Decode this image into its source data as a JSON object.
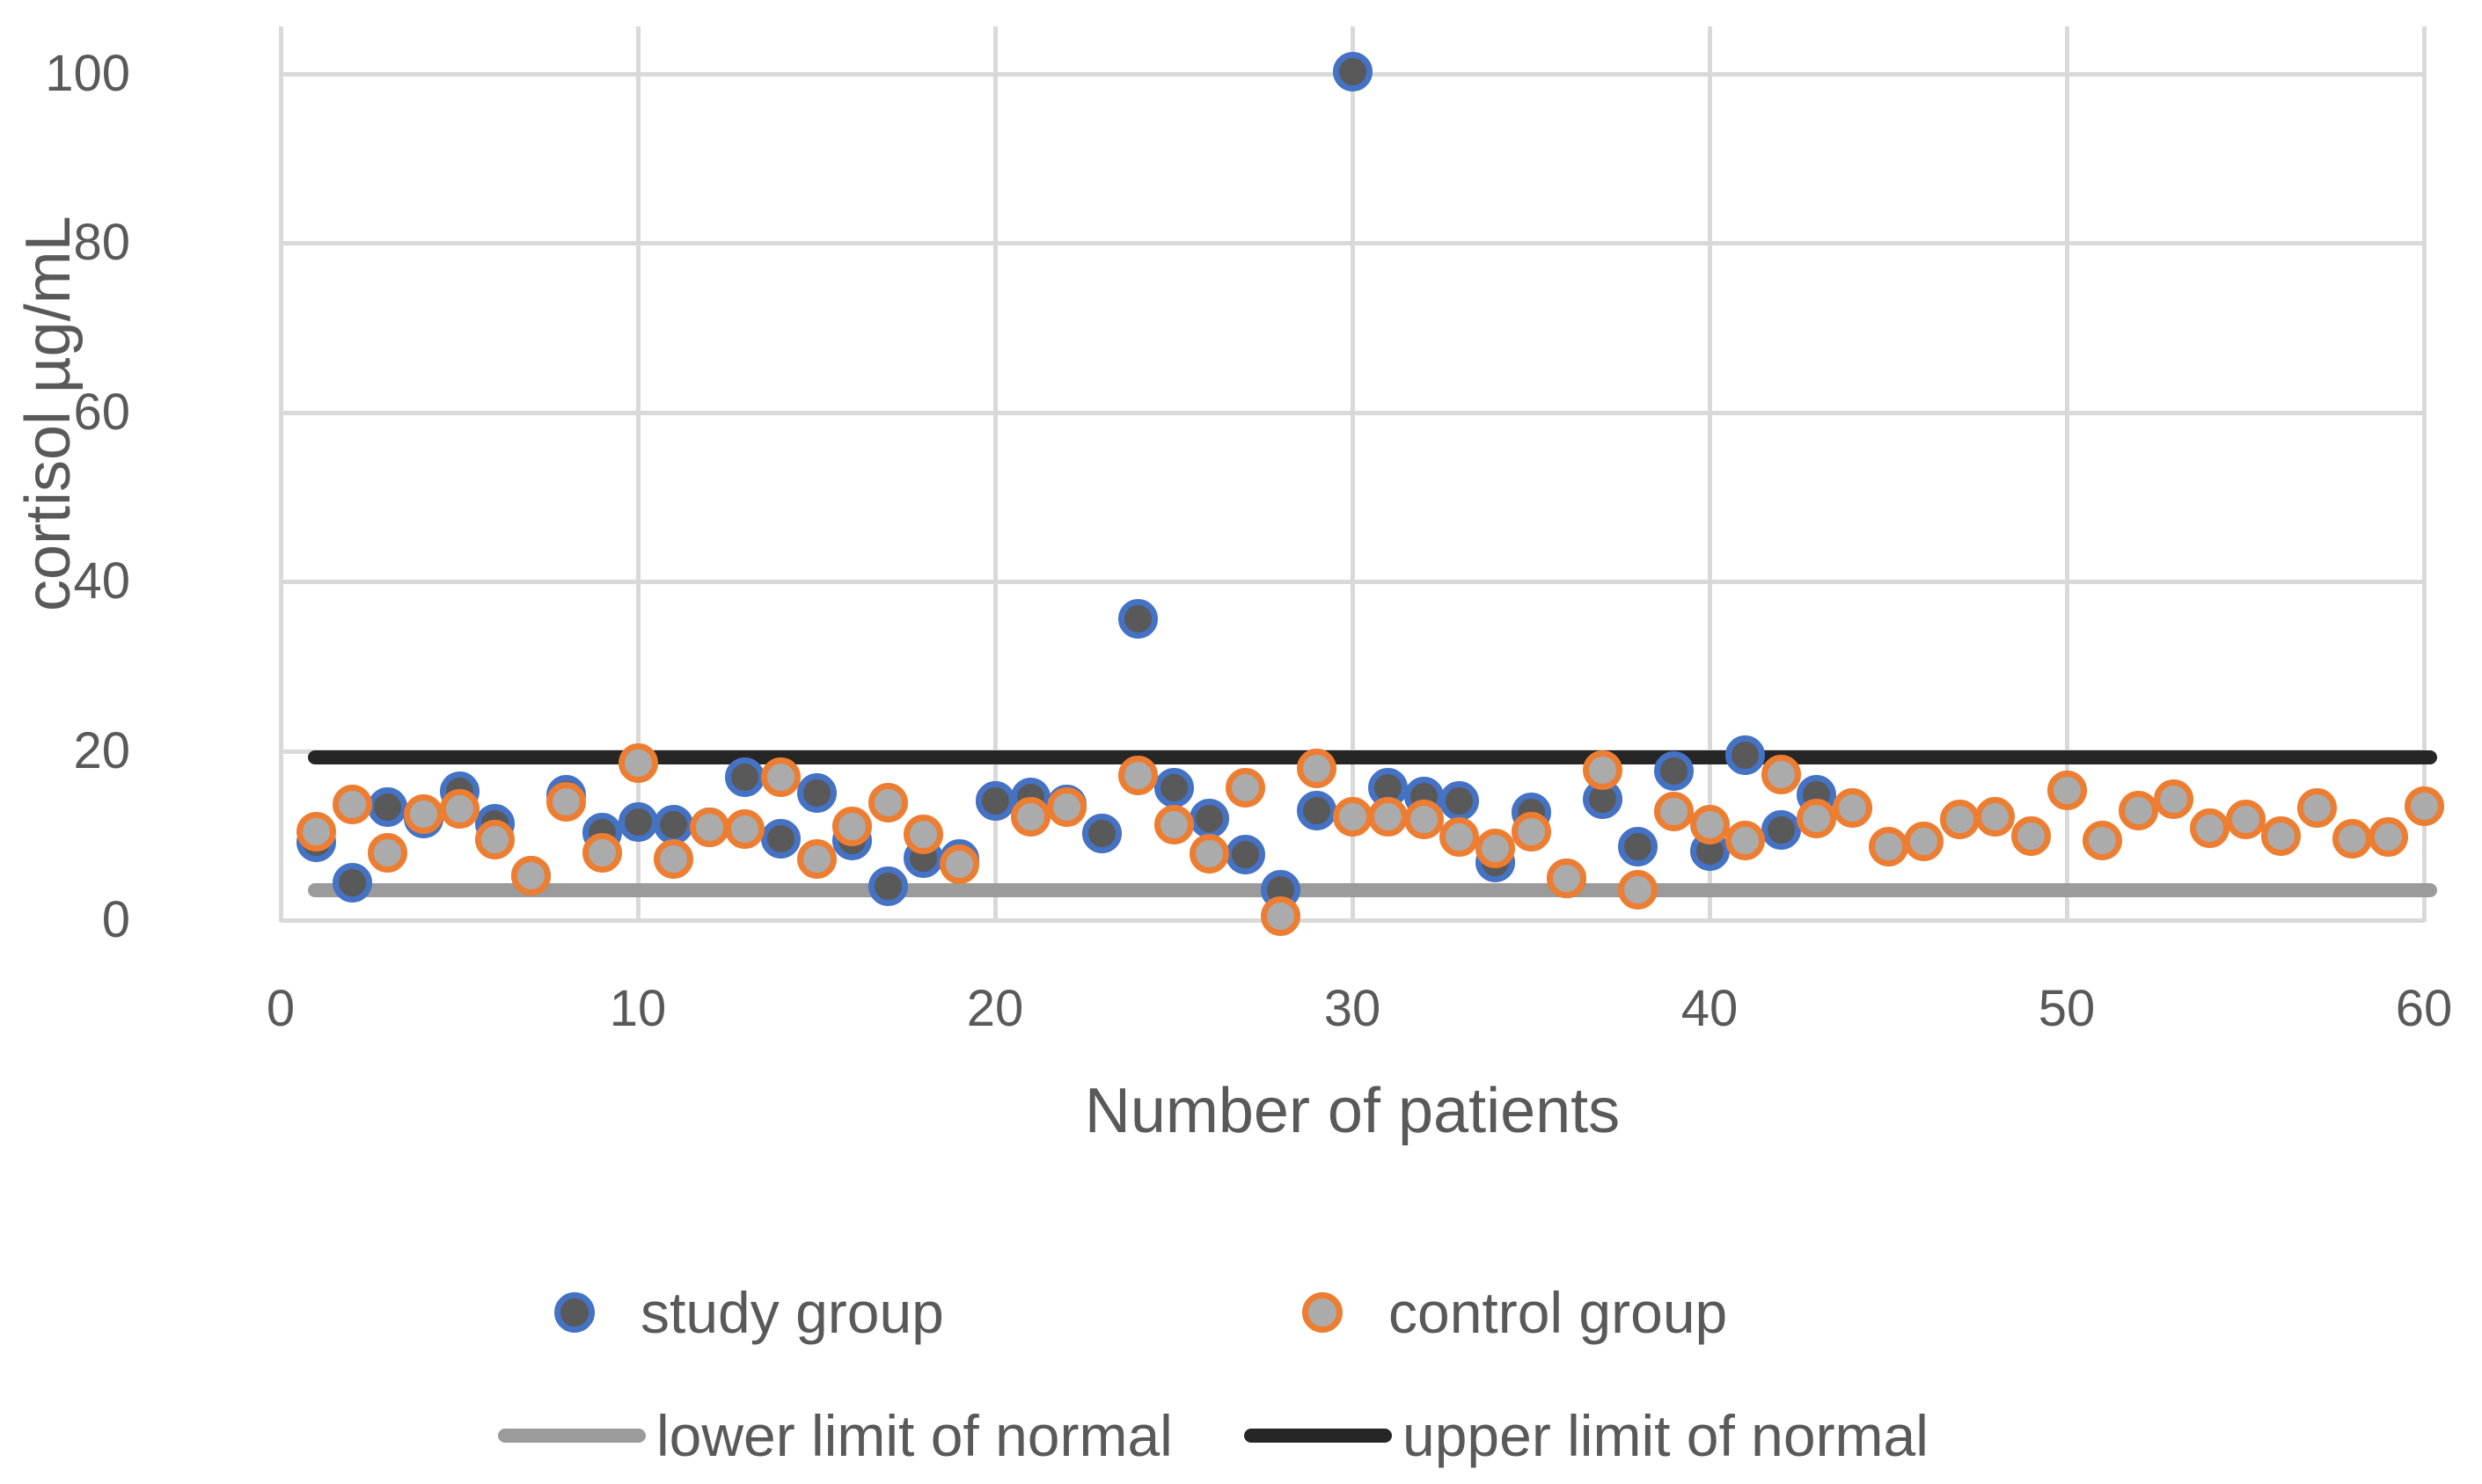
{
  "chart_data": {
    "type": "scatter",
    "title": "",
    "xlabel": "Number of patients",
    "ylabel": "cortisol µg/mL",
    "xlim": [
      0,
      61
    ],
    "ylim": [
      0,
      105
    ],
    "x_ticks": [
      0,
      10,
      20,
      30,
      40,
      50,
      60
    ],
    "y_ticks": [
      0,
      20,
      40,
      60,
      80,
      100
    ],
    "grid": true,
    "legend_position": "bottom",
    "colors": {
      "grid": "#D9D9D9",
      "axis_text": "#595959",
      "study_ring": "#4472C4",
      "study_fill": "#595959",
      "control_ring": "#ED7D31",
      "control_fill": "#ABABAB",
      "lower_limit": "#9B9B9B",
      "upper_limit": "#262626"
    },
    "series": [
      {
        "name": "study group",
        "marker": "circle",
        "ring": "#4472C4",
        "fill": "#595959",
        "points": [
          [
            1,
            9.2
          ],
          [
            2,
            4.4
          ],
          [
            3,
            13.4
          ],
          [
            4,
            12.0
          ],
          [
            5,
            15.2
          ],
          [
            6,
            11.4
          ],
          [
            7,
            5.2
          ],
          [
            8,
            14.8
          ],
          [
            9,
            10.3
          ],
          [
            10,
            11.6
          ],
          [
            11,
            11.3
          ],
          [
            12,
            11.0
          ],
          [
            13,
            16.9
          ],
          [
            14,
            9.6
          ],
          [
            15,
            15.0
          ],
          [
            16,
            9.4
          ],
          [
            17,
            4.0
          ],
          [
            18,
            7.3
          ],
          [
            19,
            7.2
          ],
          [
            20,
            14.1
          ],
          [
            21,
            14.5
          ],
          [
            22,
            13.7
          ],
          [
            23,
            10.2
          ],
          [
            24,
            35.6
          ],
          [
            25,
            15.6
          ],
          [
            26,
            12.0
          ],
          [
            27,
            7.7
          ],
          [
            28,
            3.6
          ],
          [
            29,
            12.9
          ],
          [
            30,
            100.2
          ],
          [
            31,
            15.6
          ],
          [
            32,
            14.6
          ],
          [
            33,
            14.1
          ],
          [
            34,
            6.8
          ],
          [
            35,
            12.7
          ],
          [
            36,
            4.9
          ],
          [
            37,
            14.3
          ],
          [
            38,
            8.7
          ],
          [
            39,
            17.6
          ],
          [
            40,
            8.2
          ],
          [
            41,
            19.5
          ],
          [
            42,
            10.6
          ],
          [
            43,
            14.8
          ]
        ]
      },
      {
        "name": "control group",
        "marker": "circle",
        "ring": "#ED7D31",
        "fill": "#ABABAB",
        "points": [
          [
            1,
            10.4
          ],
          [
            2,
            13.7
          ],
          [
            3,
            8.0
          ],
          [
            4,
            12.5
          ],
          [
            5,
            13.1
          ],
          [
            6,
            9.5
          ],
          [
            7,
            5.2
          ],
          [
            8,
            14.0
          ],
          [
            9,
            7.9
          ],
          [
            10,
            18.5
          ],
          [
            11,
            7.2
          ],
          [
            12,
            11.0
          ],
          [
            13,
            10.8
          ],
          [
            14,
            16.9
          ],
          [
            15,
            7.2
          ],
          [
            16,
            11.1
          ],
          [
            17,
            13.9
          ],
          [
            18,
            10.1
          ],
          [
            19,
            6.6
          ],
          [
            20,
            14.1,
            "behind"
          ],
          [
            21,
            12.2
          ],
          [
            22,
            13.4
          ],
          [
            23,
            10.2,
            "behind"
          ],
          [
            24,
            17.1
          ],
          [
            25,
            11.3
          ],
          [
            26,
            7.8
          ],
          [
            27,
            15.6
          ],
          [
            28,
            0.5
          ],
          [
            29,
            17.9
          ],
          [
            30,
            12.2
          ],
          [
            31,
            12.2
          ],
          [
            32,
            11.9
          ],
          [
            33,
            9.8
          ],
          [
            34,
            8.5
          ],
          [
            35,
            10.4
          ],
          [
            36,
            4.9
          ],
          [
            37,
            17.7
          ],
          [
            38,
            3.6
          ],
          [
            39,
            12.8
          ],
          [
            40,
            11.3
          ],
          [
            41,
            9.4
          ],
          [
            42,
            17.2
          ],
          [
            43,
            12.0
          ],
          [
            44,
            13.2
          ],
          [
            45,
            8.7
          ],
          [
            46,
            9.3
          ],
          [
            47,
            11.9
          ],
          [
            48,
            12.2
          ],
          [
            49,
            9.9
          ],
          [
            50,
            15.3
          ],
          [
            51,
            9.4
          ],
          [
            52,
            12.9
          ],
          [
            53,
            14.3
          ],
          [
            54,
            10.9
          ],
          [
            55,
            11.9
          ],
          [
            56,
            9.9
          ],
          [
            57,
            13.2
          ],
          [
            58,
            9.6
          ],
          [
            59,
            9.8
          ],
          [
            60,
            13.5
          ]
        ]
      }
    ],
    "lines": [
      {
        "name": "lower limit of normal",
        "value": 3.5,
        "color": "#9B9B9B"
      },
      {
        "name": "upper limit of normal",
        "value": 19.2,
        "color": "#262626"
      }
    ]
  },
  "legend": {
    "study_label": "study group",
    "control_label": "control group",
    "lower_label": "lower limit of normal",
    "upper_label": "upper limit of normal"
  }
}
